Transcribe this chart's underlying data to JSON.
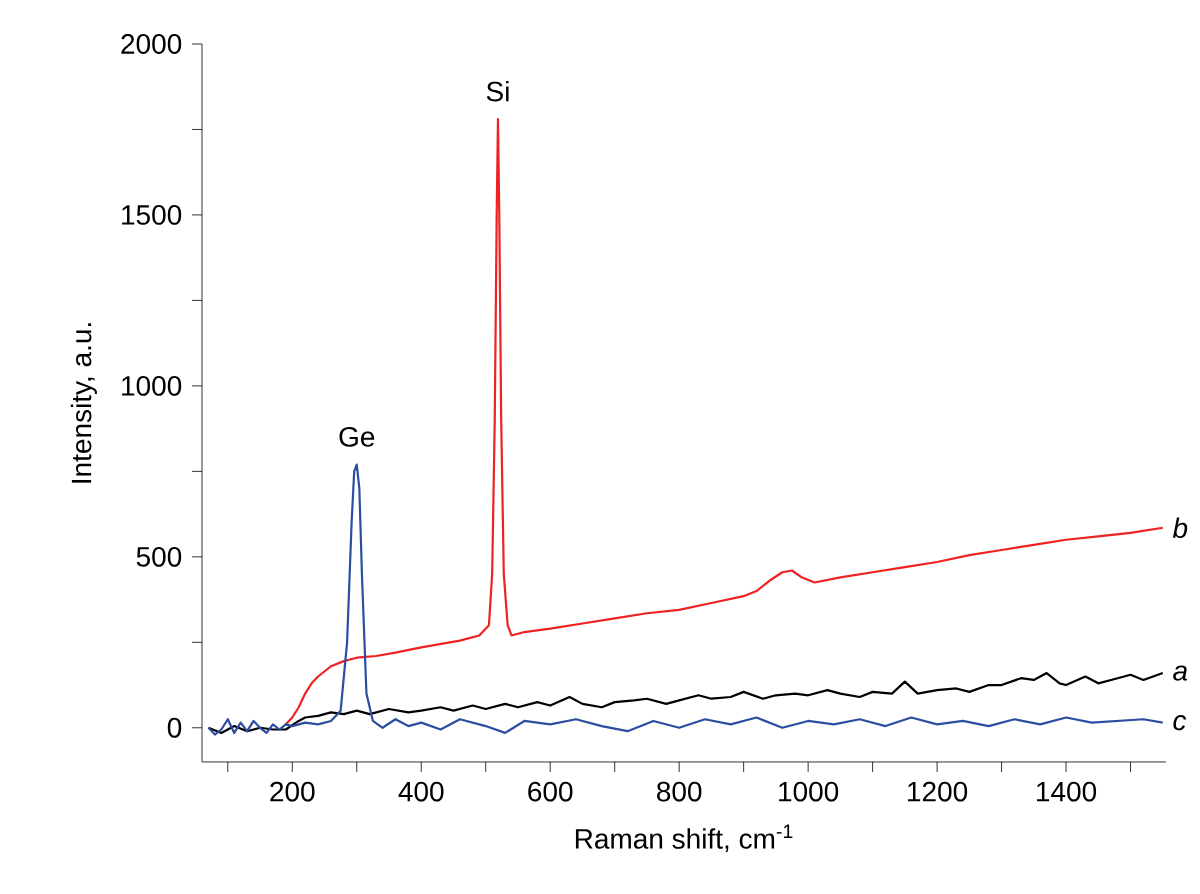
{
  "chart_data": {
    "type": "line",
    "xlabel": "Raman shift, cm$^{-1}$",
    "ylabel": "Intensity, a.u.",
    "xlim": [
      60,
      1555
    ],
    "ylim": [
      -100,
      2000
    ],
    "xticks": [
      {
        "value": 100,
        "label": null
      },
      200,
      {
        "value": 300,
        "label": null
      },
      400,
      {
        "value": 500,
        "label": null
      },
      600,
      {
        "value": 700,
        "label": null
      },
      800,
      {
        "value": 900,
        "label": null
      },
      1000,
      {
        "value": 1100,
        "label": null
      },
      1200,
      {
        "value": 1300,
        "label": null
      },
      1400,
      {
        "value": 1500,
        "label": null
      }
    ],
    "yticks": [
      0,
      {
        "value": 250,
        "label": null
      },
      500,
      {
        "value": 750,
        "label": null
      },
      1000,
      {
        "value": 1250,
        "label": null
      },
      1500,
      {
        "value": 1750,
        "label": null
      },
      2000
    ],
    "annotations": [
      {
        "text": "Ge",
        "x": 300,
        "y": 770
      },
      {
        "text": "Si",
        "x": 519,
        "y": 1780
      }
    ],
    "series": [
      {
        "name": "a",
        "color": "#000000",
        "x": [
          70,
          90,
          110,
          130,
          150,
          170,
          190,
          210,
          220,
          240,
          260,
          280,
          300,
          320,
          350,
          380,
          400,
          430,
          450,
          480,
          500,
          530,
          550,
          580,
          600,
          630,
          650,
          680,
          700,
          730,
          750,
          780,
          800,
          830,
          850,
          880,
          900,
          930,
          950,
          980,
          1000,
          1030,
          1050,
          1080,
          1100,
          1130,
          1150,
          1170,
          1200,
          1230,
          1250,
          1280,
          1300,
          1330,
          1350,
          1370,
          1390,
          1400,
          1430,
          1450,
          1480,
          1500,
          1520,
          1550
        ],
        "values": [
          0,
          -15,
          5,
          -10,
          0,
          -5,
          -5,
          20,
          30,
          35,
          45,
          40,
          50,
          40,
          55,
          45,
          50,
          60,
          50,
          65,
          55,
          70,
          60,
          75,
          65,
          90,
          70,
          60,
          75,
          80,
          85,
          70,
          80,
          95,
          85,
          90,
          105,
          85,
          95,
          100,
          95,
          110,
          100,
          90,
          105,
          100,
          135,
          100,
          110,
          115,
          105,
          125,
          125,
          145,
          140,
          160,
          130,
          125,
          150,
          130,
          145,
          155,
          140,
          160
        ]
      },
      {
        "name": "b",
        "color": "#ee2222",
        "x": [
          190,
          200,
          210,
          220,
          230,
          240,
          260,
          280,
          300,
          330,
          360,
          400,
          430,
          460,
          490,
          505,
          510,
          514,
          517,
          519,
          521,
          524,
          528,
          534,
          540,
          560,
          600,
          650,
          700,
          750,
          800,
          850,
          900,
          920,
          940,
          960,
          975,
          990,
          1010,
          1050,
          1100,
          1150,
          1200,
          1250,
          1300,
          1350,
          1400,
          1450,
          1500,
          1550
        ],
        "values": [
          10,
          30,
          60,
          100,
          130,
          150,
          180,
          195,
          205,
          210,
          220,
          235,
          245,
          255,
          270,
          300,
          450,
          900,
          1500,
          1780,
          1500,
          900,
          450,
          300,
          270,
          280,
          290,
          305,
          320,
          335,
          345,
          365,
          385,
          400,
          430,
          455,
          460,
          440,
          425,
          440,
          455,
          470,
          485,
          505,
          520,
          535,
          550,
          560,
          570,
          585
        ]
      },
      {
        "name": "c",
        "color": "#2b4ea0",
        "x": [
          70,
          80,
          90,
          100,
          110,
          120,
          130,
          140,
          150,
          160,
          170,
          180,
          190,
          200,
          220,
          240,
          260,
          275,
          285,
          292,
          296,
          300,
          304,
          308,
          315,
          325,
          340,
          360,
          380,
          400,
          430,
          460,
          500,
          530,
          560,
          600,
          640,
          680,
          720,
          760,
          800,
          840,
          880,
          920,
          960,
          1000,
          1040,
          1080,
          1120,
          1160,
          1200,
          1240,
          1280,
          1320,
          1360,
          1400,
          1440,
          1480,
          1520,
          1550
        ],
        "values": [
          0,
          -20,
          -5,
          25,
          -15,
          15,
          -10,
          20,
          0,
          -15,
          10,
          -5,
          10,
          5,
          15,
          10,
          20,
          50,
          250,
          600,
          750,
          770,
          700,
          450,
          100,
          20,
          0,
          25,
          5,
          15,
          -5,
          25,
          5,
          -15,
          20,
          10,
          25,
          5,
          -10,
          20,
          0,
          25,
          10,
          30,
          0,
          20,
          10,
          25,
          5,
          30,
          10,
          20,
          5,
          25,
          10,
          30,
          15,
          20,
          25,
          15
        ]
      }
    ]
  }
}
